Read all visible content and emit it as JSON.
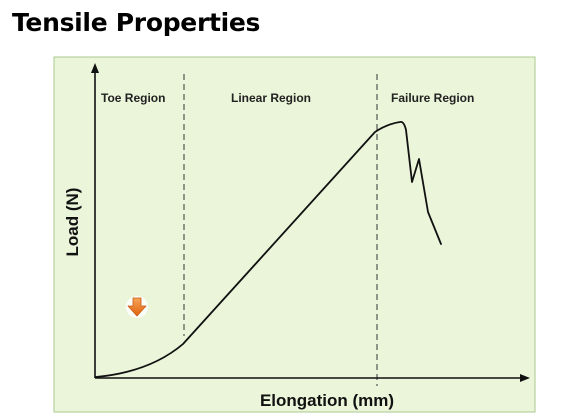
{
  "slide": {
    "title": "Tensile Properties"
  },
  "diagram": {
    "background_color": "#eaf5d9",
    "border_color": "#a9c98c",
    "cursor_color": "#e8731c",
    "regions": [
      {
        "label": "Toe Region"
      },
      {
        "label": "Linear Region"
      },
      {
        "label": "Failure Region"
      }
    ],
    "x_axis_label": "Elongation (mm)",
    "y_axis_label": "Load (N)",
    "icons": {
      "cursor": "download-arrow-icon"
    }
  }
}
